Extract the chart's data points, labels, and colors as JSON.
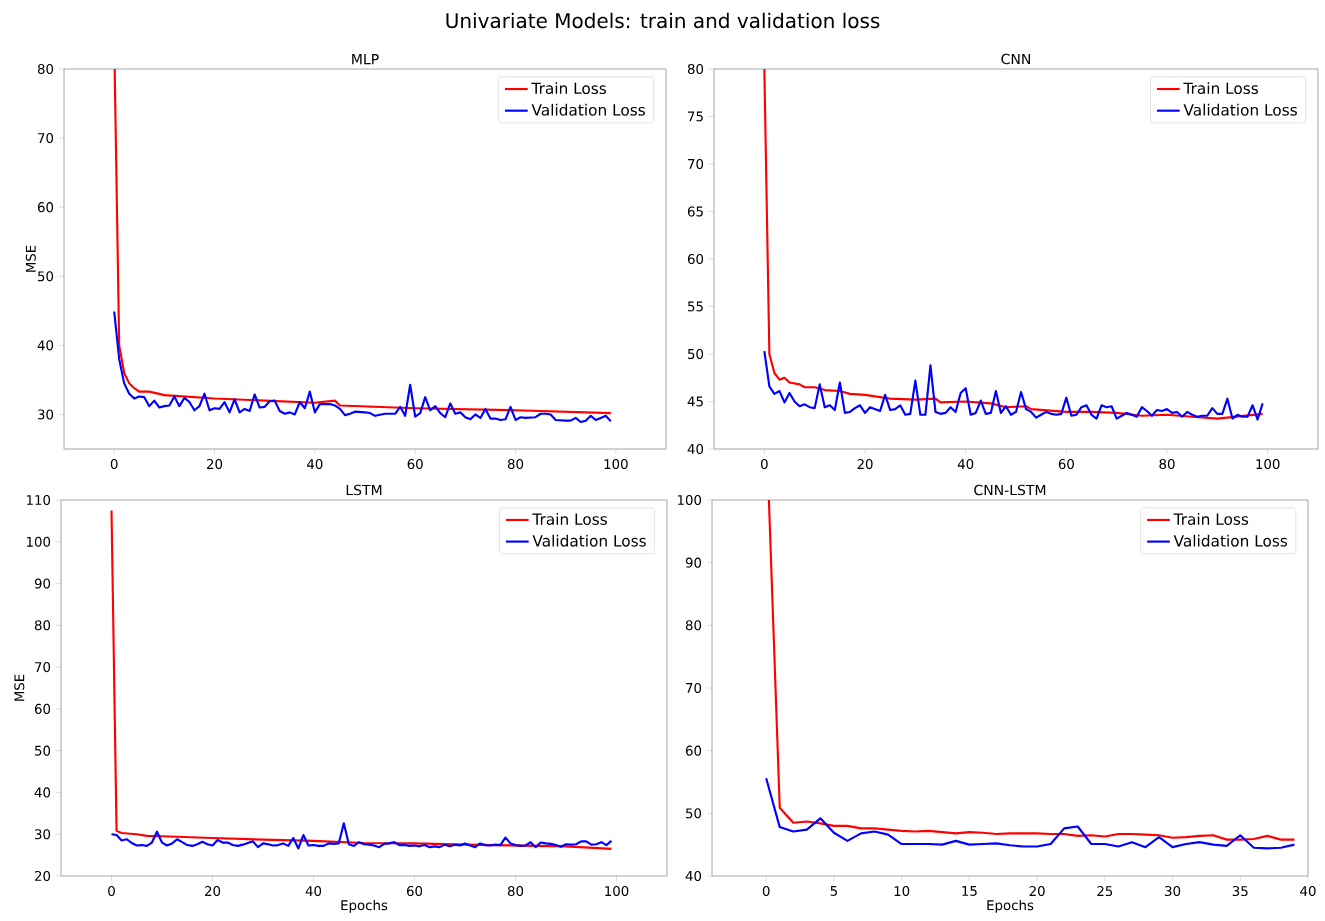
{
  "chart_data": [
    {
      "type": "line",
      "title": "MLP",
      "ylabel": "MSE",
      "annotations": [
        "Univariate Models: train and validation loss"
      ],
      "legend": "top right",
      "xlim": [
        -10,
        110
      ],
      "ylim": [
        25,
        80
      ],
      "xticks": [
        0,
        20,
        40,
        60,
        80,
        100
      ],
      "yticks": [
        30,
        40,
        50,
        60,
        70,
        80
      ],
      "series": [
        {
          "name": "Train Loss",
          "color": "#ff0000",
          "x": [
            0.1,
            1,
            2,
            3,
            4,
            5,
            7,
            10,
            20,
            30,
            40,
            44,
            45,
            60,
            80,
            99
          ],
          "values": [
            80,
            40,
            36,
            34.5,
            33.8,
            33.3,
            33.3,
            32.8,
            32.3,
            32,
            31.7,
            32,
            31.3,
            30.9,
            30.6,
            30.2
          ]
        },
        {
          "name": "Validation Loss",
          "color": "#0000ff",
          "x": [
            0,
            1,
            2,
            3,
            4,
            5,
            6,
            7,
            8,
            9,
            10,
            11,
            12,
            13,
            14,
            15,
            16,
            17,
            18,
            19,
            20,
            21,
            22,
            23,
            24,
            25,
            26,
            27,
            28,
            29,
            30,
            31,
            32,
            33,
            34,
            35,
            36,
            37,
            38,
            39,
            40,
            41,
            42,
            43,
            44,
            45,
            46,
            47,
            48,
            50,
            51,
            52,
            54,
            56,
            57,
            58,
            59,
            60,
            61,
            62,
            63,
            64,
            65,
            66,
            67,
            68,
            69,
            70,
            71,
            72,
            73,
            74,
            75,
            76,
            77,
            78,
            79,
            80,
            81,
            82,
            84,
            85,
            86,
            87,
            88,
            90,
            91,
            92,
            93,
            94,
            95,
            96,
            97,
            98,
            99
          ],
          "values": [
            44.9,
            38,
            34.5,
            33,
            32.3,
            32.6,
            32.5,
            31.2,
            32,
            31,
            31.2,
            31.3,
            32.6,
            31.2,
            32.4,
            31.8,
            30.6,
            31.2,
            33,
            30.6,
            30.9,
            30.8,
            31.8,
            30.3,
            32.2,
            30.3,
            30.8,
            30.5,
            32.9,
            31,
            31.1,
            31.9,
            32,
            30.5,
            30.1,
            30.3,
            30,
            31.8,
            30.9,
            33.3,
            30.3,
            31.5,
            31.5,
            31.5,
            31.3,
            30.8,
            29.9,
            30.1,
            30.4,
            30.3,
            30.2,
            29.8,
            30.1,
            30.1,
            31.1,
            29.8,
            34.3,
            29.7,
            30.2,
            32.5,
            30.6,
            31.2,
            30.2,
            29.6,
            31.6,
            30.1,
            30.3,
            29.6,
            29.3,
            30,
            29.5,
            30.8,
            29.4,
            29.4,
            29.2,
            29.3,
            31.1,
            29.2,
            29.6,
            29.5,
            29.6,
            30.1,
            30.1,
            30,
            29.2,
            29.1,
            29.1,
            29.5,
            28.9,
            29.1,
            29.8,
            29.2,
            29.5,
            29.8,
            29
          ]
        }
      ]
    },
    {
      "type": "line",
      "title": "CNN",
      "legend": "top right",
      "xlim": [
        -10,
        110
      ],
      "ylim": [
        40,
        80
      ],
      "xticks": [
        0,
        20,
        40,
        60,
        80,
        100
      ],
      "yticks": [
        40,
        45,
        50,
        55,
        60,
        65,
        70,
        75,
        80
      ],
      "series": [
        {
          "name": "Train Loss",
          "color": "#ff0000",
          "x": [
            0,
            1,
            2,
            3,
            4,
            5,
            7,
            8,
            10,
            12,
            15,
            17,
            20,
            25,
            30,
            34,
            35,
            40,
            45,
            48,
            52,
            53,
            60,
            65,
            70,
            75,
            80,
            85,
            90,
            99
          ],
          "values": [
            80,
            50,
            48,
            47.3,
            47.5,
            47,
            46.8,
            46.5,
            46.5,
            46.2,
            46.1,
            45.8,
            45.7,
            45.3,
            45.2,
            45.3,
            44.9,
            45,
            44.8,
            44.4,
            44.5,
            44.2,
            43.9,
            43.9,
            43.8,
            43.5,
            43.6,
            43.4,
            43.2,
            43.7
          ]
        },
        {
          "name": "Validation Loss",
          "color": "#0000ff",
          "x": [
            0,
            1,
            2,
            3,
            4,
            5,
            6,
            7,
            8,
            9,
            10,
            11,
            12,
            13,
            14,
            15,
            16,
            17,
            18,
            19,
            20,
            21,
            22,
            23,
            24,
            25,
            26,
            27,
            28,
            29,
            30,
            31,
            32,
            33,
            34,
            35,
            36,
            37,
            38,
            39,
            40,
            41,
            42,
            43,
            44,
            45,
            46,
            47,
            48,
            49,
            50,
            51,
            52,
            53,
            54,
            55,
            56,
            57,
            58,
            59,
            60,
            61,
            62,
            63,
            64,
            65,
            66,
            67,
            68,
            69,
            70,
            71,
            72,
            73,
            74,
            75,
            76,
            77,
            78,
            79,
            80,
            81,
            82,
            83,
            84,
            85,
            86,
            87,
            88,
            89,
            90,
            91,
            92,
            93,
            94,
            95,
            96,
            97,
            98,
            99
          ],
          "values": [
            50.3,
            46.6,
            45.8,
            46.1,
            44.9,
            45.9,
            45,
            44.5,
            44.7,
            44.4,
            44.3,
            46.8,
            44.4,
            44.6,
            44.1,
            47,
            43.8,
            43.9,
            44.3,
            44.6,
            43.8,
            44.4,
            44.2,
            44,
            45.7,
            44.1,
            44.2,
            44.6,
            43.6,
            43.7,
            47.2,
            43.6,
            43.6,
            48.8,
            43.9,
            43.7,
            43.8,
            44.4,
            43.9,
            45.9,
            46.4,
            43.6,
            43.8,
            45.1,
            43.7,
            43.8,
            46.1,
            43.8,
            44.5,
            43.6,
            43.9,
            46,
            44.2,
            43.9,
            43.3,
            43.6,
            43.9,
            43.7,
            43.6,
            43.7,
            45.4,
            43.5,
            43.6,
            44.4,
            44.6,
            43.6,
            43.2,
            44.6,
            44.4,
            44.5,
            43.2,
            43.5,
            43.8,
            43.6,
            43.4,
            44.4,
            44,
            43.5,
            44.1,
            44,
            44.2,
            43.8,
            43.9,
            43.4,
            43.9,
            43.6,
            43.4,
            43.5,
            43.5,
            44.3,
            43.7,
            43.7,
            45.3,
            43.2,
            43.6,
            43.4,
            43.4,
            44.6,
            43.1,
            44.8
          ]
        }
      ]
    },
    {
      "type": "line",
      "title": "LSTM",
      "xlabel": "Epochs",
      "ylabel": "MSE",
      "legend": "top right",
      "xlim": [
        -10,
        110
      ],
      "ylim": [
        20,
        110
      ],
      "xticks": [
        0,
        20,
        40,
        60,
        80,
        100
      ],
      "yticks": [
        20,
        30,
        40,
        50,
        60,
        70,
        80,
        90,
        100,
        110
      ],
      "series": [
        {
          "name": "Train Loss",
          "color": "#ff0000",
          "x": [
            0,
            1,
            2,
            5,
            7,
            10,
            15,
            20,
            30,
            40,
            50,
            60,
            70,
            80,
            90,
            99
          ],
          "values": [
            107.5,
            30.8,
            30.3,
            30,
            29.6,
            29.5,
            29.3,
            29.1,
            28.7,
            28.4,
            27.9,
            27.8,
            27.5,
            27.3,
            27.1,
            26.5
          ]
        },
        {
          "name": "Validation Loss",
          "color": "#0000ff",
          "x": [
            0,
            1,
            2,
            3,
            4,
            5,
            6,
            7,
            8,
            9,
            10,
            11,
            12,
            13,
            14,
            15,
            16,
            17,
            18,
            19,
            20,
            21,
            22,
            23,
            24,
            25,
            26,
            27,
            28,
            29,
            30,
            31,
            32,
            33,
            34,
            35,
            36,
            37,
            38,
            39,
            40,
            41,
            42,
            43,
            44,
            45,
            46,
            47,
            48,
            49,
            50,
            51,
            52,
            53,
            54,
            55,
            56,
            57,
            58,
            59,
            60,
            61,
            62,
            63,
            64,
            65,
            66,
            67,
            68,
            69,
            70,
            71,
            72,
            73,
            74,
            75,
            76,
            77,
            78,
            79,
            80,
            81,
            82,
            83,
            84,
            85,
            86,
            87,
            88,
            89,
            90,
            91,
            92,
            93,
            94,
            95,
            96,
            97,
            98,
            99
          ],
          "values": [
            30,
            29.8,
            28.5,
            28.8,
            27.9,
            27.3,
            27.4,
            27.2,
            28,
            30.6,
            28,
            27.3,
            27.8,
            28.8,
            28.1,
            27.4,
            27.2,
            27.6,
            28.2,
            27.6,
            27.3,
            28.6,
            28,
            28,
            27.4,
            27.2,
            27.5,
            27.9,
            28.3,
            26.9,
            27.8,
            27.6,
            27.3,
            27.4,
            27.8,
            27.2,
            29.1,
            26.6,
            29.8,
            27.3,
            27.4,
            27.2,
            27.2,
            27.8,
            27.7,
            27.8,
            32.6,
            27.6,
            27.2,
            28.1,
            27.6,
            27.5,
            27.3,
            26.9,
            27.7,
            27.8,
            28.1,
            27.4,
            27.4,
            27.2,
            27.3,
            27.1,
            27.4,
            26.9,
            27.1,
            26.9,
            27.5,
            27.1,
            27.5,
            27.3,
            27.8,
            27.3,
            26.9,
            27.8,
            27.4,
            27.3,
            27.5,
            27.4,
            29.2,
            27.8,
            27.4,
            27.2,
            27.3,
            28.1,
            26.9,
            28,
            27.8,
            27.7,
            27.4,
            27,
            27.6,
            27.5,
            27.6,
            28.3,
            28.3,
            27.5,
            27.6,
            28.1,
            27.4,
            28.4
          ]
        }
      ]
    },
    {
      "type": "line",
      "title": "CNN-LSTM",
      "xlabel": "Epochs",
      "legend": "top right",
      "xlim": [
        -4,
        40
      ],
      "ylim": [
        40,
        100
      ],
      "xticks": [
        0,
        5,
        10,
        15,
        20,
        25,
        30,
        35,
        40
      ],
      "yticks": [
        40,
        50,
        60,
        70,
        80,
        90,
        100
      ],
      "series": [
        {
          "name": "Train Loss",
          "color": "#ff0000",
          "x": [
            0.2,
            1,
            2,
            3,
            4,
            5,
            6,
            7,
            8,
            9,
            10,
            11,
            12,
            13,
            14,
            15,
            16,
            17,
            18,
            19,
            20,
            21,
            22,
            23,
            24,
            25,
            26,
            27,
            28,
            29,
            30,
            31,
            32,
            33,
            34,
            35,
            36,
            37,
            38,
            39
          ],
          "values": [
            100,
            50.9,
            48.5,
            48.7,
            48.4,
            48,
            48,
            47.6,
            47.6,
            47.4,
            47.2,
            47.1,
            47.2,
            47,
            46.8,
            47,
            46.9,
            46.7,
            46.8,
            46.8,
            46.8,
            46.7,
            46.7,
            46.4,
            46.5,
            46.3,
            46.7,
            46.7,
            46.6,
            46.5,
            46.1,
            46.2,
            46.4,
            46.5,
            45.8,
            45.8,
            45.9,
            46.4,
            45.8,
            45.8
          ]
        },
        {
          "name": "Validation Loss",
          "color": "#0000ff",
          "x": [
            0,
            1,
            2,
            3,
            4,
            5,
            6,
            7,
            8,
            9,
            10,
            11,
            12,
            13,
            14,
            15,
            16,
            17,
            18,
            19,
            20,
            21,
            22,
            23,
            24,
            25,
            26,
            27,
            28,
            29,
            30,
            31,
            32,
            33,
            34,
            35,
            36,
            37,
            38,
            39
          ],
          "values": [
            55.6,
            47.8,
            47.1,
            47.4,
            49.2,
            46.9,
            45.6,
            46.8,
            47.1,
            46.6,
            45.1,
            45.1,
            45.1,
            45,
            45.6,
            45,
            45.1,
            45.2,
            44.9,
            44.7,
            44.7,
            45.1,
            47.6,
            47.9,
            45.1,
            45.1,
            44.7,
            45.4,
            44.6,
            46.2,
            44.6,
            45.1,
            45.4,
            45,
            44.8,
            46.5,
            44.5,
            44.4,
            44.5,
            45
          ]
        }
      ]
    }
  ]
}
